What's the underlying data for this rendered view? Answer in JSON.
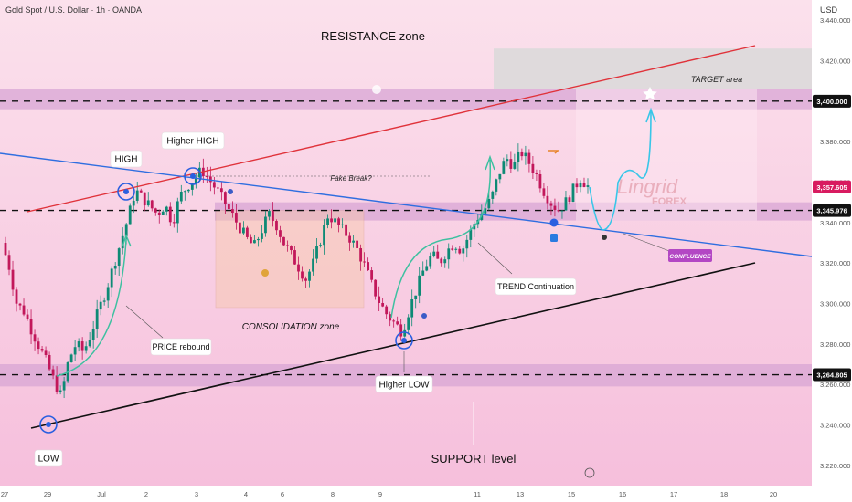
{
  "header": {
    "symbol_title": "Gold Spot / U.S. Dollar · 1h · OANDA",
    "currency": "USD"
  },
  "colors": {
    "background": "#fbdcea",
    "candle_up": "#0e8a75",
    "candle_down": "#c2185b",
    "resistance_line": "#e0323a",
    "support_line": "#111111",
    "trend_line": "#2f6ee0",
    "zone_band": "#d8a6d4",
    "target_zone": "#d9d9d9",
    "confluence_badge": "#b347c4",
    "current_price_badge": "#d81b60"
  },
  "chart_data": {
    "type": "candlestick",
    "symbol": "Gold Spot / U.S. Dollar",
    "timeframe": "1h",
    "ylim": [
      3210,
      3450
    ],
    "y_ticks": [
      "3,440.000",
      "3,420.000",
      "3,380.000",
      "3,360.000",
      "3,340.000",
      "3,320.000",
      "3,300.000",
      "3,280.000",
      "3,260.000",
      "3,240.000",
      "3,220.000"
    ],
    "x_ticks": [
      "27",
      "29",
      "Jul",
      "2",
      "3",
      "4",
      "6",
      "8",
      "9",
      "11",
      "13",
      "15",
      "16",
      "17",
      "18",
      "20"
    ],
    "price_labels": [
      {
        "value": 3400.0,
        "text": "3,400.000",
        "style": "level"
      },
      {
        "value": 3357.605,
        "text": "3,357.605",
        "style": "current"
      },
      {
        "value": 3345.976,
        "text": "3,345.976",
        "style": "level"
      },
      {
        "value": 3264.805,
        "text": "3,264.805",
        "style": "level"
      }
    ],
    "price_path": [
      [
        0,
        3330
      ],
      [
        1,
        3318
      ],
      [
        2,
        3300
      ],
      [
        3,
        3296
      ],
      [
        4,
        3287
      ],
      [
        5,
        3279
      ],
      [
        6,
        3271
      ],
      [
        7,
        3262
      ],
      [
        8,
        3254
      ],
      [
        9,
        3272
      ],
      [
        10,
        3280
      ],
      [
        11,
        3276
      ],
      [
        12,
        3285
      ],
      [
        13,
        3296
      ],
      [
        14,
        3306
      ],
      [
        15,
        3318
      ],
      [
        16,
        3330
      ],
      [
        17,
        3342
      ],
      [
        18,
        3356
      ],
      [
        19,
        3352
      ],
      [
        20,
        3348
      ],
      [
        21,
        3344
      ],
      [
        22,
        3349
      ],
      [
        23,
        3340
      ],
      [
        24,
        3353
      ],
      [
        25,
        3358
      ],
      [
        26,
        3362
      ],
      [
        27,
        3366
      ],
      [
        28,
        3361
      ],
      [
        29,
        3356
      ],
      [
        30,
        3350
      ],
      [
        31,
        3344
      ],
      [
        32,
        3338
      ],
      [
        33,
        3332
      ],
      [
        34,
        3328
      ],
      [
        35,
        3336
      ],
      [
        36,
        3344
      ],
      [
        37,
        3339
      ],
      [
        38,
        3330
      ],
      [
        39,
        3324
      ],
      [
        40,
        3318
      ],
      [
        41,
        3312
      ],
      [
        42,
        3320
      ],
      [
        43,
        3332
      ],
      [
        44,
        3344
      ],
      [
        45,
        3340
      ],
      [
        46,
        3336
      ],
      [
        47,
        3332
      ],
      [
        48,
        3326
      ],
      [
        49,
        3318
      ],
      [
        50,
        3308
      ],
      [
        51,
        3300
      ],
      [
        52,
        3294
      ],
      [
        53,
        3290
      ],
      [
        54,
        3286
      ],
      [
        55,
        3298
      ],
      [
        56,
        3308
      ],
      [
        57,
        3318
      ],
      [
        58,
        3324
      ],
      [
        59,
        3320
      ],
      [
        60,
        3326
      ],
      [
        61,
        3330
      ],
      [
        62,
        3326
      ],
      [
        63,
        3334
      ],
      [
        64,
        3342
      ],
      [
        65,
        3346
      ],
      [
        66,
        3352
      ],
      [
        67,
        3364
      ],
      [
        68,
        3372
      ],
      [
        69,
        3368
      ],
      [
        70,
        3375
      ],
      [
        71,
        3370
      ],
      [
        72,
        3364
      ],
      [
        73,
        3356
      ],
      [
        74,
        3350
      ],
      [
        75,
        3346
      ],
      [
        76,
        3350
      ],
      [
        77,
        3356
      ],
      [
        78,
        3362
      ],
      [
        79,
        3358
      ]
    ],
    "zones": [
      {
        "name": "resistance band",
        "from": 3396,
        "to": 3406
      },
      {
        "name": "mid band",
        "from": 3341,
        "to": 3350
      },
      {
        "name": "support band",
        "from": 3259,
        "to": 3270
      },
      {
        "name": "target area",
        "from": 3406,
        "to": 3426
      }
    ],
    "annotations": {
      "resistance_zone": "RESISTANCE zone",
      "target_area": "TARGET area",
      "high": "HIGH",
      "higher_high": "Higher HIGH",
      "fake_break": "Fake Break?",
      "consolidation_zone": "CONSOLIDATION zone",
      "price_rebound": "PRICE rebound",
      "higher_low": "Higher LOW",
      "low": "LOW",
      "trend_continuation": "TREND Continuation",
      "confluence": "CONFLUENCE",
      "support_level": "SUPPORT level"
    },
    "watermark": {
      "line1": "Lingrid",
      "line2": "FOREX"
    }
  }
}
